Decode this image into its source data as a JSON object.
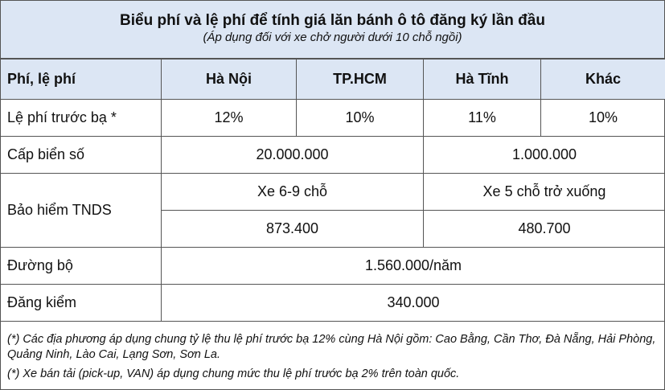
{
  "title": "Biểu phí và lệ phí để tính giá lăn bánh ô tô đăng ký lần đầu",
  "subtitle": "(Áp dụng đối với xe chở người dưới 10 chỗ ngồi)",
  "headers": [
    "Phí, lệ phí",
    "Hà Nội",
    "TP.HCM",
    "Hà Tĩnh",
    "Khác"
  ],
  "rows": {
    "truoc_ba": {
      "label": "Lệ phí trước bạ *",
      "values": [
        "12%",
        "10%",
        "11%",
        "10%"
      ]
    },
    "bien_so": {
      "label": "Cấp biển số",
      "values": [
        "20.000.000",
        "1.000.000"
      ]
    },
    "tnds": {
      "label": "Bảo hiểm TNDS",
      "types": [
        "Xe 6-9 chỗ",
        "Xe 5 chỗ trở xuống"
      ],
      "values": [
        "873.400",
        "480.700"
      ]
    },
    "duong_bo": {
      "label": "Đường bộ",
      "value": "1.560.000/năm"
    },
    "dang_kiem": {
      "label": "Đăng kiểm",
      "value": "340.000"
    }
  },
  "notes": [
    "(*) Các địa phương áp dụng chung tỷ lệ thu lệ phí trước bạ 12% cùng Hà Nội gồm: Cao Bằng, Cần Thơ, Đà Nẵng, Hải Phòng, Quảng Ninh, Lào Cai, Lạng Sơn, Sơn La.",
    "(*) Xe bán tải (pick-up, VAN) áp dụng chung mức thu lệ phí trước bạ 2% trên toàn quốc."
  ]
}
